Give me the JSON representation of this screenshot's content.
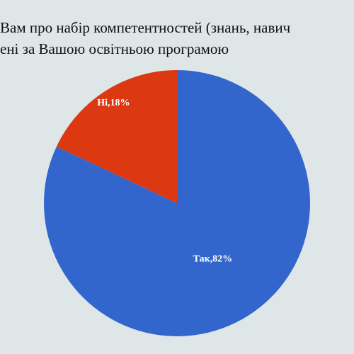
{
  "chart_data": {
    "type": "pie",
    "title_lines": [
      "Вам про набір компетентностей (знань, навич",
      "ені за Вашою освітньою програмою"
    ],
    "values": [
      82,
      18
    ],
    "value_labels": [
      "Так,82%",
      "Ні,18%"
    ],
    "colors": [
      "#3366cc",
      "#dc3912"
    ]
  }
}
